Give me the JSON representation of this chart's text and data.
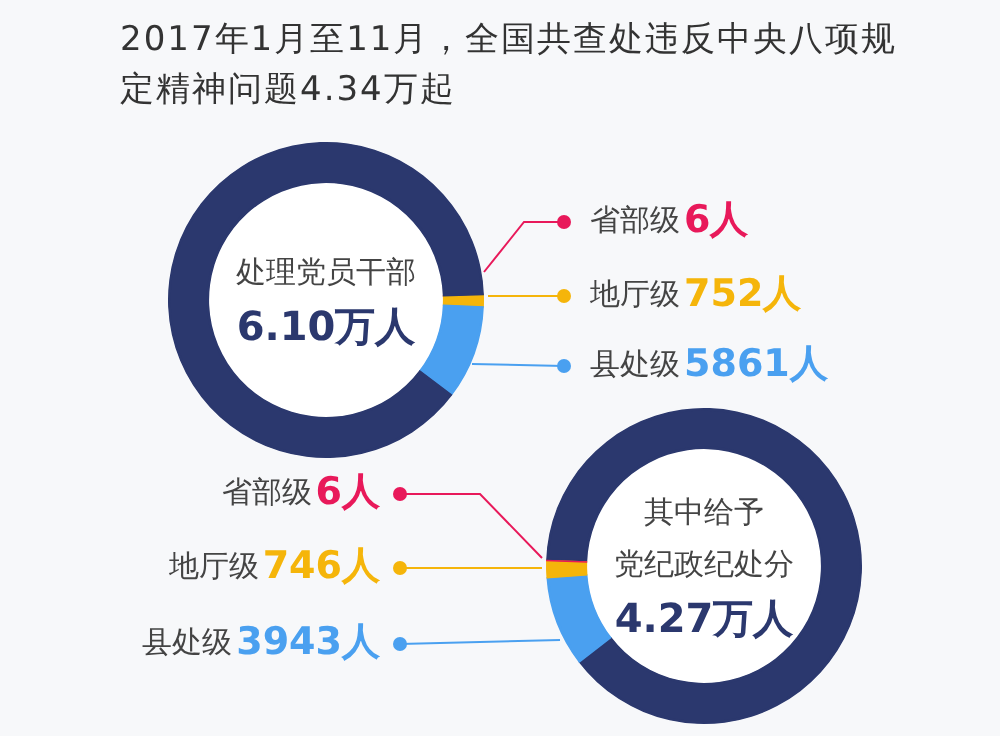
{
  "chart_data": [
    {
      "type": "donut",
      "title": "2017年1月至11月，全国共查处违反中央八项规定精神问题4.34万起",
      "annotations": [
        "处理党员干部",
        "6.10万人"
      ],
      "legend": "right",
      "categories": [
        "省部级",
        "地厅级",
        "县处级",
        null
      ],
      "values": [
        6,
        752,
        5861,
        54381
      ],
      "value_labels": [
        "6人",
        "752人",
        "5861人",
        null
      ],
      "colors": [
        "#e8195a",
        "#f5b50a",
        "#4aa0f0",
        "#2b386e"
      ]
    },
    {
      "type": "donut",
      "annotations": [
        "其中给予",
        "党纪政纪处分",
        "4.27万人"
      ],
      "categories": [
        "省部级",
        "地厅级",
        "县处级",
        null
      ],
      "values": [
        6,
        746,
        3943,
        38005
      ],
      "value_labels": [
        "6人",
        "746人",
        "3943人",
        null
      ],
      "colors": [
        "#e8195a",
        "#f5b50a",
        "#4aa0f0",
        "#2b386e"
      ]
    }
  ]
}
